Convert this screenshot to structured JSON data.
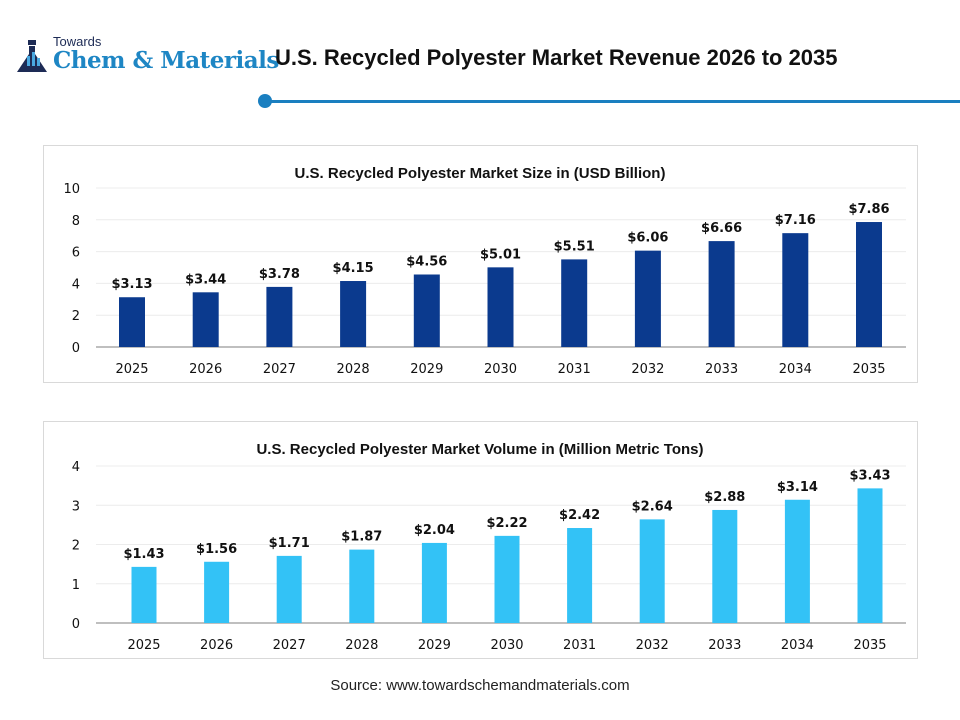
{
  "header": {
    "logo_top": "Towards",
    "logo_main": "Chem & Materials",
    "title": "U.S. Recycled Polyester Market Revenue 2026 to 2035",
    "accent_color": "#1a7fc0"
  },
  "chart_data": [
    {
      "type": "bar",
      "title": "U.S. Recycled Polyester Market Size in (USD Billion)",
      "categories": [
        "2025",
        "2026",
        "2027",
        "2028",
        "2029",
        "2030",
        "2031",
        "2032",
        "2033",
        "2034",
        "2035"
      ],
      "values": [
        3.13,
        3.44,
        3.78,
        4.15,
        4.56,
        5.01,
        5.51,
        6.06,
        6.66,
        7.16,
        7.86
      ],
      "data_labels": [
        "$3.13",
        "$3.44",
        "$3.78",
        "$4.15",
        "$4.56",
        "$5.01",
        "$5.51",
        "$6.06",
        "$6.66",
        "$7.16",
        "$7.86"
      ],
      "yticks": [
        0,
        2,
        4,
        6,
        8,
        10
      ],
      "ylim": [
        0,
        10
      ],
      "grid": true,
      "color": "#0b3a8e",
      "xlabel": "",
      "ylabel": ""
    },
    {
      "type": "bar",
      "title": "U.S. Recycled Polyester Market Volume in (Million Metric Tons)",
      "categories": [
        "2025",
        "2026",
        "2027",
        "2028",
        "2029",
        "2030",
        "2031",
        "2032",
        "2033",
        "2034",
        "2035"
      ],
      "values": [
        1.43,
        1.56,
        1.71,
        1.87,
        2.04,
        2.22,
        2.42,
        2.64,
        2.88,
        3.14,
        3.43
      ],
      "data_labels": [
        "$1.43",
        "$1.56",
        "$1.71",
        "$1.87",
        "$2.04",
        "$2.22",
        "$2.42",
        "$2.64",
        "$2.88",
        "$3.14",
        "$3.43"
      ],
      "yticks": [
        0,
        1,
        2,
        3,
        4
      ],
      "ylim": [
        0,
        4
      ],
      "grid": true,
      "color": "#33c2f6",
      "xlabel": "",
      "ylabel": ""
    }
  ],
  "footer": {
    "source": "Source: www.towardschemandmaterials.com"
  }
}
